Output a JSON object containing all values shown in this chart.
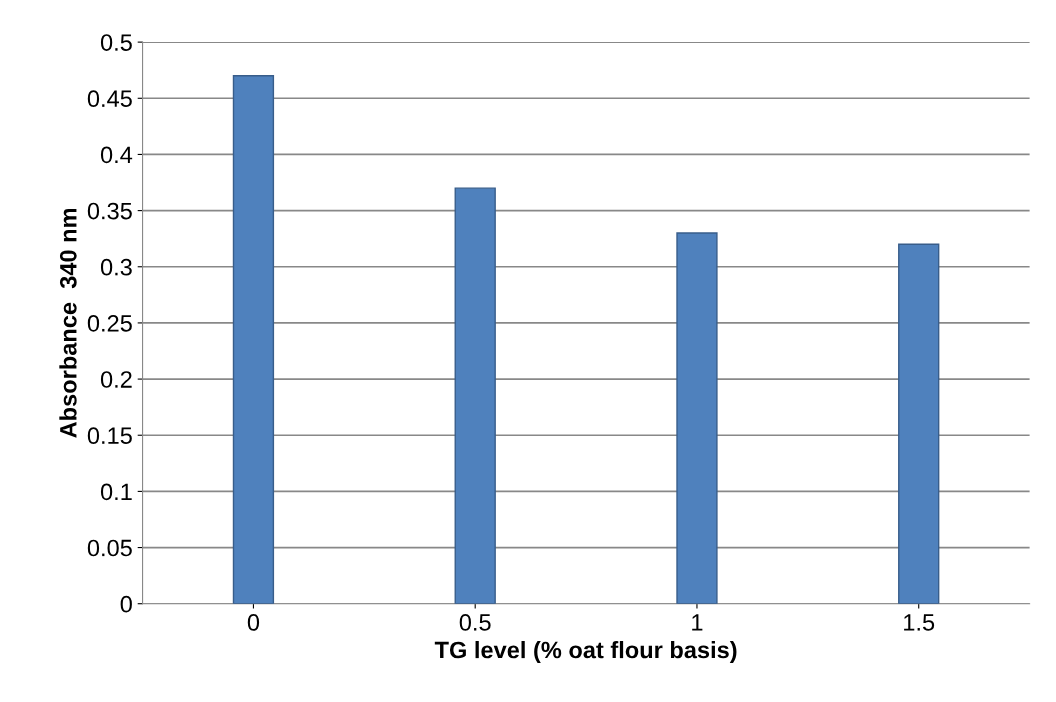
{
  "chart_data": {
    "type": "bar",
    "xlabel": "TG level (% oat flour basis)",
    "ylabel": "Absorbance  340 nm",
    "categories": [
      "0",
      "0.5",
      "1",
      "1.5"
    ],
    "values": [
      0.47,
      0.37,
      0.33,
      0.32
    ],
    "color": "#4f81bd",
    "ylim": [
      0,
      0.5
    ],
    "yticks": [
      0,
      0.05,
      0.1,
      0.15,
      0.2,
      0.25,
      0.3,
      0.35,
      0.4,
      0.45,
      0.5
    ],
    "grid": "y",
    "legend": false
  }
}
